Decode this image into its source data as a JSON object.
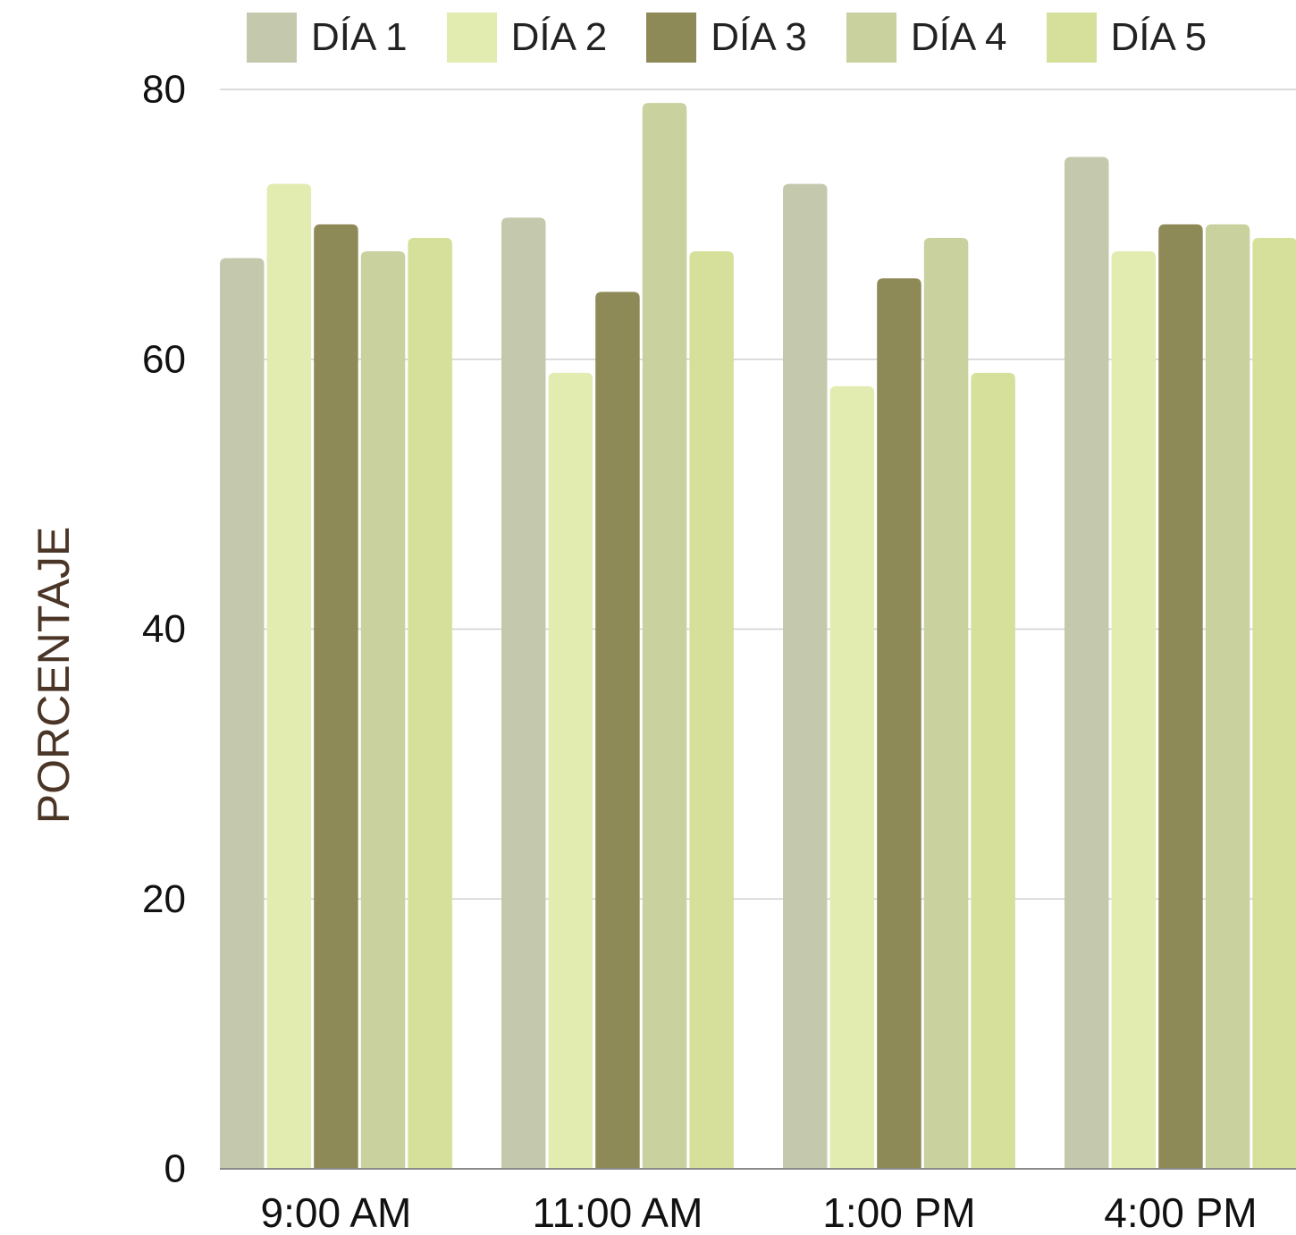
{
  "chart_data": {
    "type": "bar",
    "title": "",
    "xlabel": "",
    "ylabel": "PORCENTAJE",
    "ylim": [
      0,
      80
    ],
    "yticks": [
      0,
      20,
      40,
      60,
      80
    ],
    "grid": true,
    "legend_position": "top",
    "categories": [
      "9:00 AM",
      "11:00 AM",
      "1:00 PM",
      "4:00 PM"
    ],
    "series": [
      {
        "name": "DÍA 1",
        "color": "#c4c9ad",
        "values": [
          67.5,
          70.5,
          73,
          75
        ]
      },
      {
        "name": "DÍA 2",
        "color": "#e2ecb0",
        "values": [
          73,
          59,
          58,
          68
        ]
      },
      {
        "name": "DÍA 3",
        "color": "#8e8a58",
        "values": [
          70,
          65,
          66,
          70
        ]
      },
      {
        "name": "DÍA 4",
        "color": "#c9d19e",
        "values": [
          68,
          79,
          69,
          70
        ]
      },
      {
        "name": "DÍA 5",
        "color": "#d6e09a",
        "values": [
          69,
          68,
          59,
          69
        ]
      }
    ]
  }
}
